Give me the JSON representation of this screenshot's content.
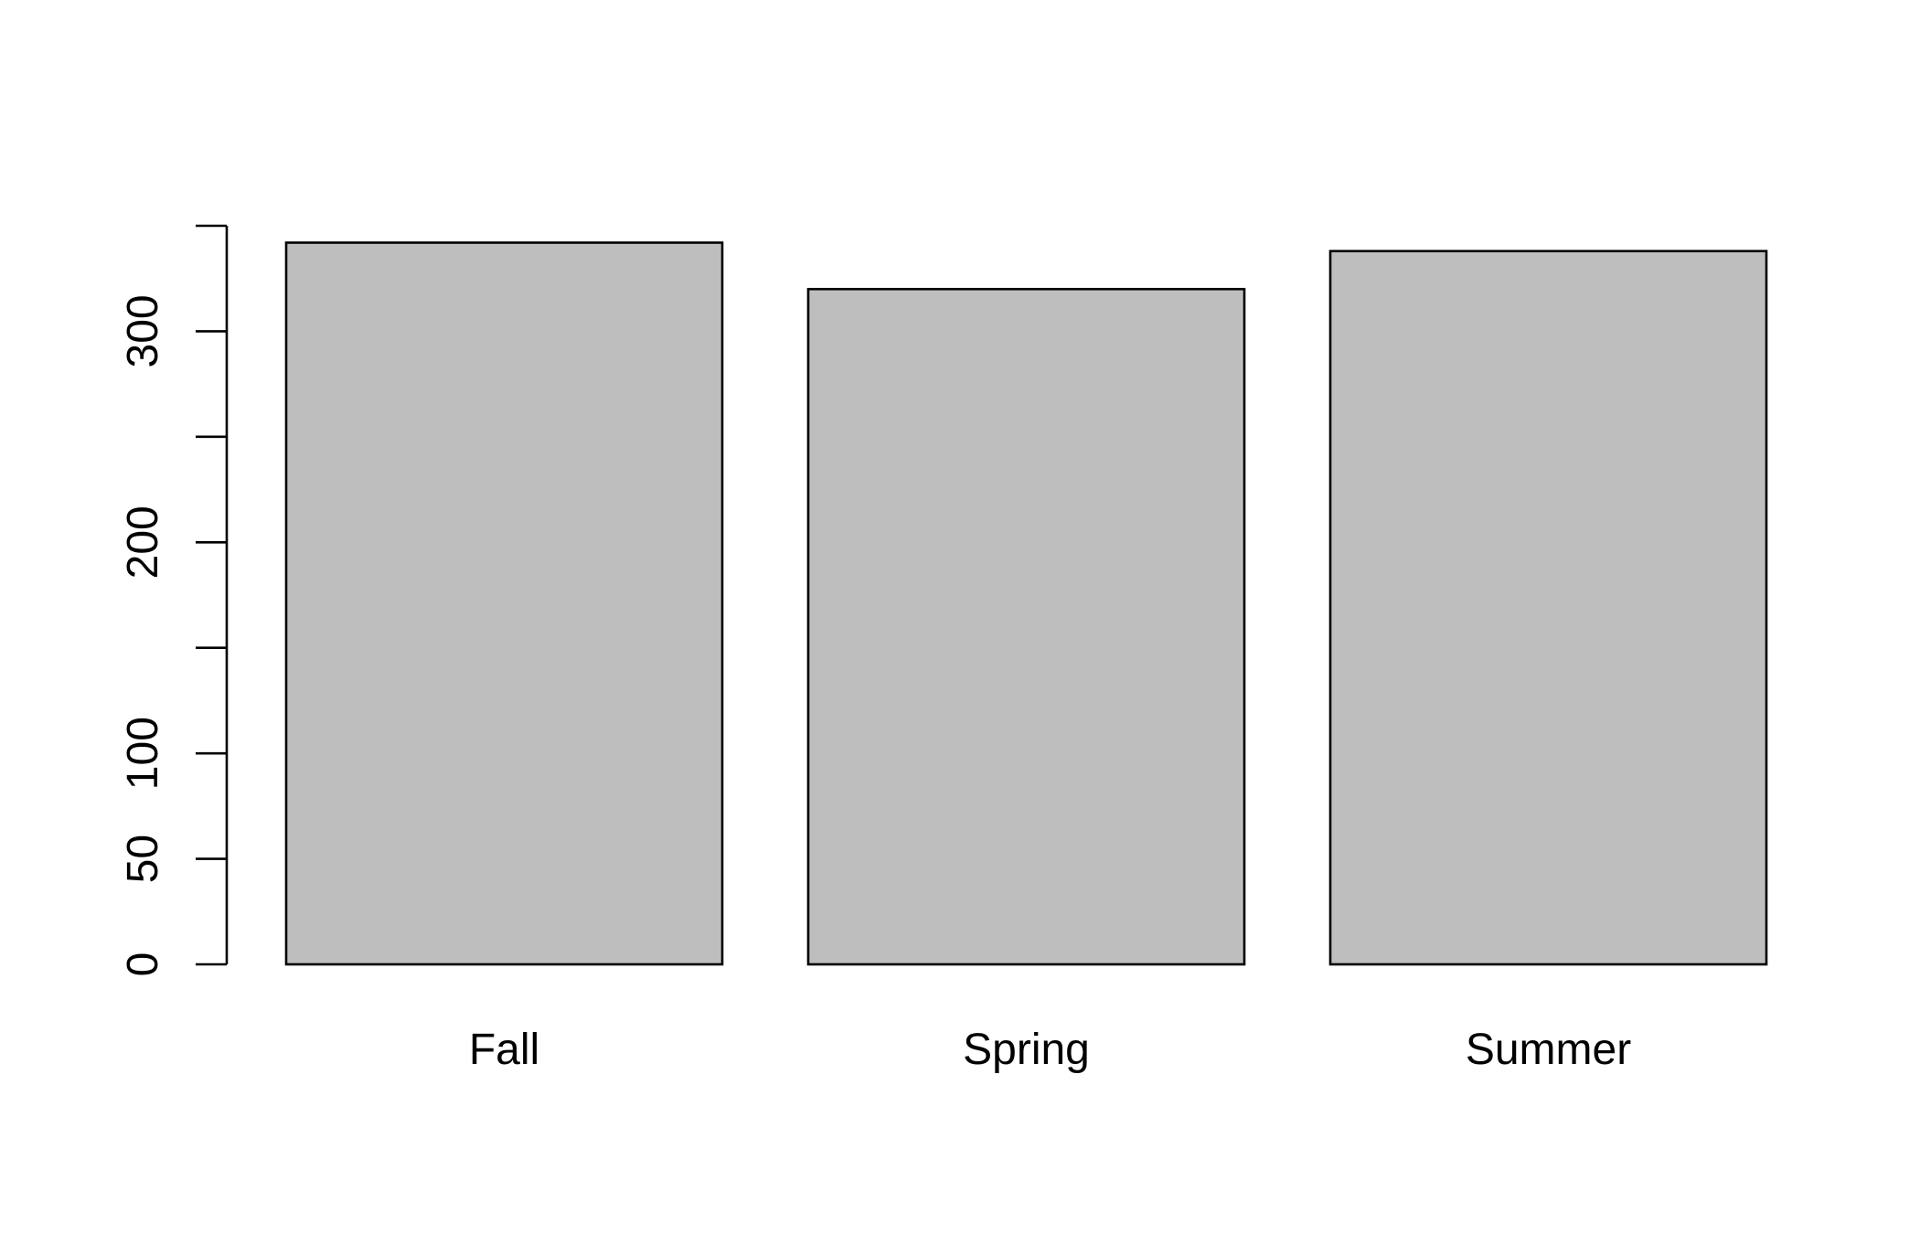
{
  "chart_data": {
    "type": "bar",
    "title": "",
    "xlabel": "",
    "ylabel": "",
    "categories": [
      "Fall",
      "Spring",
      "Summer"
    ],
    "values": [
      342,
      320,
      338
    ],
    "ylim": [
      0,
      350
    ],
    "y_ticks": [
      0,
      50,
      100,
      200,
      300
    ],
    "y_minor_ticks": [
      150,
      250,
      350
    ],
    "y_tick_labels": [
      "0",
      "50",
      "100",
      "200",
      "300"
    ],
    "grid": false,
    "legend": "none",
    "colors": {
      "bar_fill": "#bebebe",
      "bar_border": "#000000",
      "axis": "#000000",
      "background": "#ffffff"
    }
  }
}
